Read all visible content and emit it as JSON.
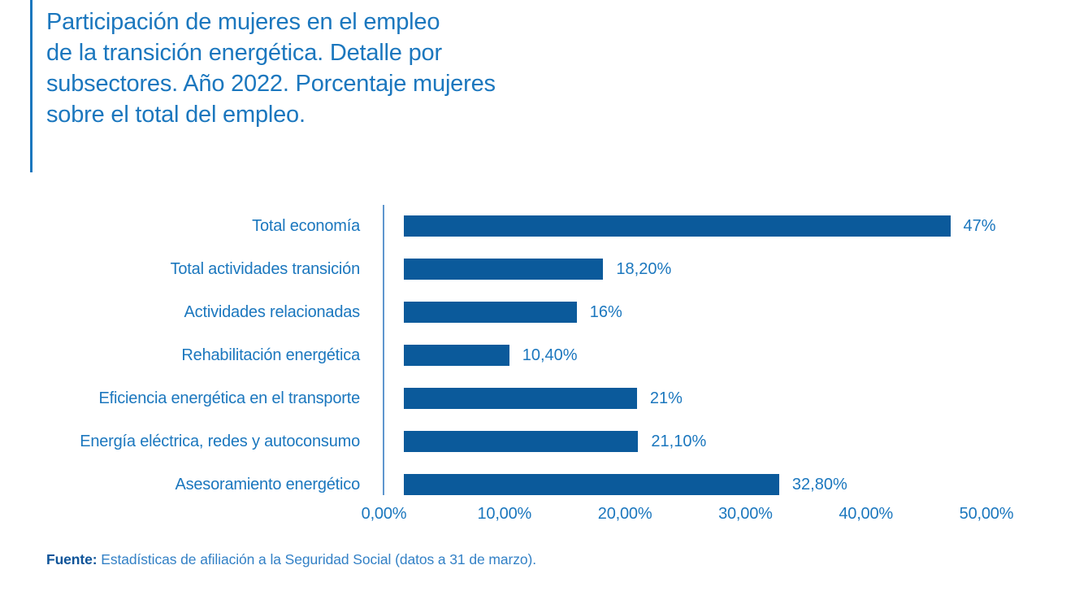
{
  "title_lines": [
    "Participación de mujeres en el empleo",
    "de la transición energética. Detalle por",
    "subsectores. Año 2022. Porcentaje mujeres",
    "sobre el total del empleo."
  ],
  "colors": {
    "accent": "#1B77BE",
    "text": "#1B77BE",
    "bar": "#0B5A9B",
    "axis": "#5E96CE",
    "source": "#3381C6",
    "source_bold": "#0F5499"
  },
  "source": {
    "label": "Fuente:",
    "text": " Estadísticas de afiliación a la Seguridad Social (datos a 31 de marzo)."
  },
  "chart_data": {
    "type": "bar",
    "orientation": "horizontal",
    "title": "Participación de mujeres en el empleo de la transición energética. Detalle por subsectores. Año 2022. Porcentaje mujeres sobre el total del empleo.",
    "categories": [
      "Total economía",
      "Total actividades transición",
      "Actividades relacionadas",
      "Rehabilitación energética",
      "Eficiencia energética en el transporte",
      "Energía eléctrica, redes y autoconsumo",
      "Asesoramiento energético"
    ],
    "values": [
      47,
      18.2,
      16,
      10.4,
      21,
      21.1,
      32.8
    ],
    "value_labels": [
      "47%",
      "18,20%",
      "16%",
      "10,40%",
      "21%",
      "21,10%",
      "32,80%"
    ],
    "x_ticks": [
      "0,00%",
      "10,00%",
      "20,00%",
      "30,00%",
      "40,00%",
      "50,00%"
    ],
    "xlim": [
      0,
      50
    ],
    "xlabel": "",
    "ylabel": "",
    "grid": false,
    "legend": false
  }
}
